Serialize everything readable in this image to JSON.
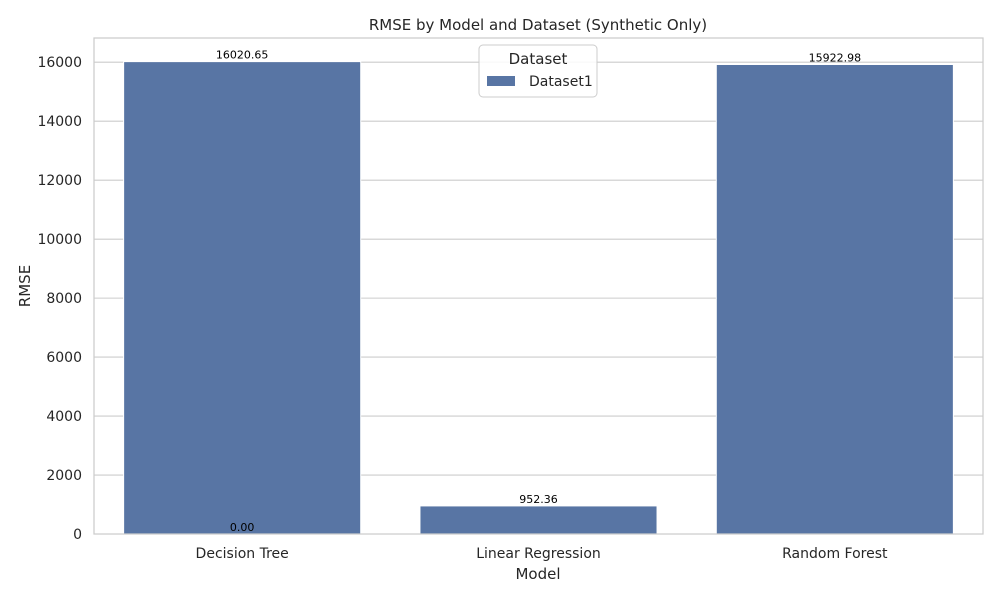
{
  "chart_data": {
    "type": "bar",
    "title": "RMSE by Model and Dataset (Synthetic Only)",
    "xlabel": "Model",
    "ylabel": "RMSE",
    "categories": [
      "Decision Tree",
      "Linear Regression",
      "Random Forest"
    ],
    "series": [
      {
        "name": "Dataset1",
        "values": [
          16020.65,
          952.36,
          15922.98
        ],
        "color": "#5875a4"
      }
    ],
    "data_labels": [
      "16020.65",
      "952.36",
      "15922.98"
    ],
    "extra_labels": [
      {
        "category": "Decision Tree",
        "value": 0,
        "text": "0.00"
      }
    ],
    "ylim": [
      0,
      16821.68
    ],
    "yticks": [
      0,
      2000,
      4000,
      6000,
      8000,
      10000,
      12000,
      14000,
      16000
    ],
    "grid": true,
    "legend": {
      "title": "Dataset",
      "placement": "top-center"
    }
  }
}
